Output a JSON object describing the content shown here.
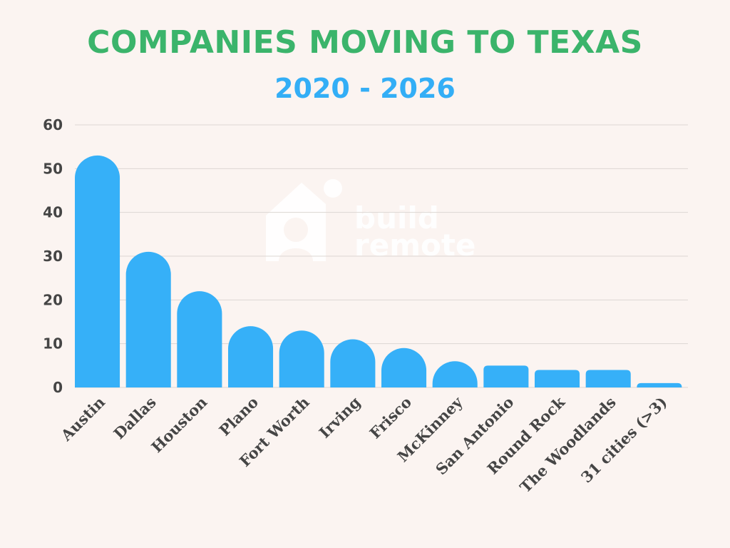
{
  "colors": {
    "background": "#fbf4f1",
    "title": "#3bb46b",
    "subtitle": "#33aef6",
    "bar": "#36b0f8",
    "axis_text": "#454545",
    "grid": "#dcd6d3"
  },
  "watermark": {
    "brand": "build remote",
    "icon": "house-person-icon"
  },
  "chart_data": {
    "type": "bar",
    "title": "COMPANIES MOVING TO TEXAS",
    "subtitle": "2020 - 2026",
    "xlabel": "",
    "ylabel": "",
    "categories": [
      "Austin",
      "Dallas",
      "Houston",
      "Plano",
      "Fort Worth",
      "Irving",
      "Frisco",
      "McKinney",
      "San Antonio",
      "Round Rock",
      "The Woodlands",
      "31 cities (>3)"
    ],
    "values": [
      53,
      31,
      22,
      14,
      13,
      11,
      9,
      6,
      5,
      4,
      4,
      1
    ],
    "ylim": [
      0,
      60
    ],
    "yticks": [
      0,
      10,
      20,
      30,
      40,
      50,
      60
    ],
    "grid": true,
    "legend": "none"
  }
}
